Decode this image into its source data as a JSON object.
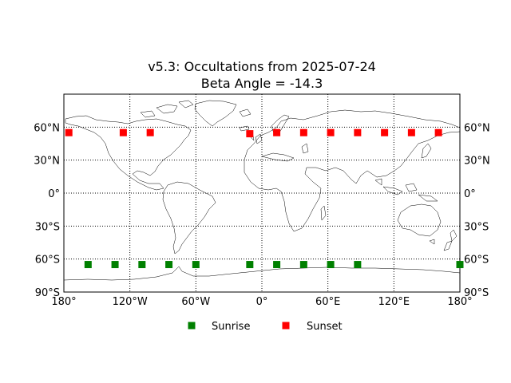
{
  "chart_data": {
    "type": "scatter",
    "title": "v5.3: Occultations from 2025-07-24",
    "subtitle": "Beta Angle = -14.3",
    "xlabel": "",
    "ylabel": "",
    "xlim": [
      -180,
      180
    ],
    "ylim": [
      -90,
      90
    ],
    "grid": true,
    "legend_position": "bottom",
    "x_ticks": [
      {
        "value": -180,
        "label": "180°"
      },
      {
        "value": -120,
        "label": "120°W"
      },
      {
        "value": -60,
        "label": "60°W"
      },
      {
        "value": 0,
        "label": "0°"
      },
      {
        "value": 60,
        "label": "60°E"
      },
      {
        "value": 120,
        "label": "120°E"
      },
      {
        "value": 180,
        "label": "180°"
      }
    ],
    "y_ticks": [
      {
        "value": 60,
        "label": "60°N"
      },
      {
        "value": 30,
        "label": "30°N"
      },
      {
        "value": 0,
        "label": "0°"
      },
      {
        "value": -30,
        "label": "30°S"
      },
      {
        "value": -60,
        "label": "60°S"
      },
      {
        "value": -90,
        "label": "90°S"
      }
    ],
    "series": [
      {
        "name": "Sunrise",
        "color": "#008000",
        "marker": "square",
        "points": [
          {
            "x": -158,
            "y": -65
          },
          {
            "x": -133.5,
            "y": -65
          },
          {
            "x": -109,
            "y": -65
          },
          {
            "x": -84.5,
            "y": -65
          },
          {
            "x": -60,
            "y": -65
          },
          {
            "x": -11,
            "y": -65
          },
          {
            "x": 13.5,
            "y": -65
          },
          {
            "x": 38,
            "y": -65
          },
          {
            "x": 62.5,
            "y": -65
          },
          {
            "x": 87,
            "y": -65
          },
          {
            "x": 180,
            "y": -65
          }
        ]
      },
      {
        "name": "Sunset",
        "color": "#ff0000",
        "marker": "square",
        "points": [
          {
            "x": -175.5,
            "y": 55
          },
          {
            "x": -126,
            "y": 55
          },
          {
            "x": -101.5,
            "y": 55
          },
          {
            "x": -11,
            "y": 54
          },
          {
            "x": 13.5,
            "y": 55
          },
          {
            "x": 38,
            "y": 55
          },
          {
            "x": 62.5,
            "y": 55
          },
          {
            "x": 87,
            "y": 55
          },
          {
            "x": 111.5,
            "y": 55
          },
          {
            "x": 136,
            "y": 55
          },
          {
            "x": 160.5,
            "y": 55
          }
        ]
      }
    ]
  },
  "map": {
    "land_color": "#ffffff",
    "coastline_color": "#000000",
    "background": "#ffffff"
  }
}
